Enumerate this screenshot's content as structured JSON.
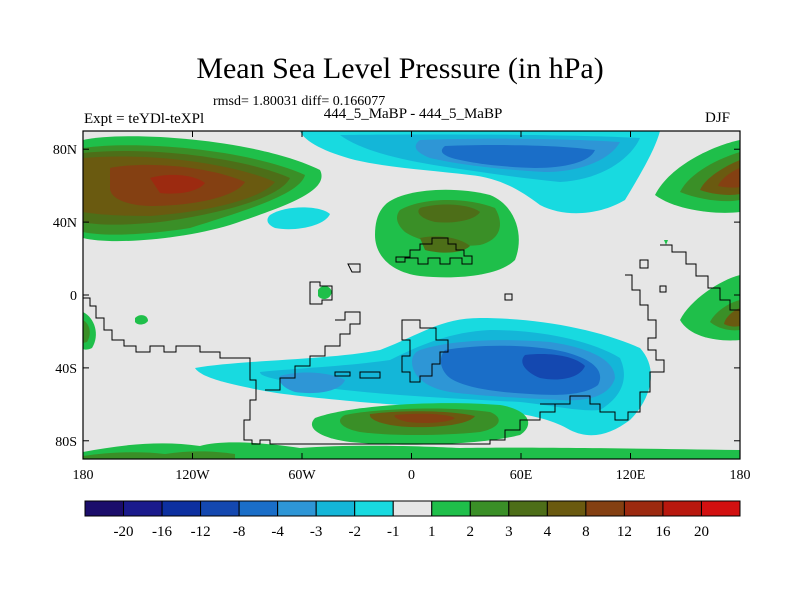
{
  "chart_data": {
    "type": "heatmap",
    "title": "Mean Sea Level Pressure (in hPa)",
    "stats_line": "rmsd= 1.80031 diff= 0.166077",
    "left_label": "Expt = teYDl-teXPl",
    "center_label": "444_5_MaBP - 444_5_MaBP",
    "right_label": "DJF",
    "x_axis": {
      "range": [
        -180,
        180
      ],
      "ticks": [
        -180,
        -120,
        -60,
        0,
        60,
        120,
        180
      ],
      "tick_labels": [
        "180",
        "120W",
        "60W",
        "0",
        "60E",
        "120E",
        "180"
      ]
    },
    "y_axis": {
      "range": [
        -90,
        90
      ],
      "ticks": [
        80,
        40,
        0,
        -40,
        -80
      ],
      "tick_labels": [
        "80N",
        "40N",
        "0",
        "40S",
        "80S"
      ]
    },
    "colorbar": {
      "levels": [
        "-20",
        "-16",
        "-12",
        "-8",
        "-4",
        "-3",
        "-2",
        "-1",
        "1",
        "2",
        "3",
        "4",
        "8",
        "12",
        "16",
        "20"
      ],
      "colors": [
        "#1b0d6b",
        "#1a1a8c",
        "#0d30a0",
        "#1448b0",
        "#1a6ec8",
        "#2e96d6",
        "#14b6d8",
        "#18dae0",
        "#e6e6e6",
        "#1fbf4a",
        "#3a8f27",
        "#4d6e18",
        "#6a5a10",
        "#844012",
        "#9c2a10",
        "#b8180e",
        "#d21010"
      ]
    },
    "anomaly_regions": [
      {
        "name": "north-pacific-high",
        "sign": "positive",
        "peak_level": "12"
      },
      {
        "name": "north-atlantic-high",
        "sign": "positive",
        "peak_level": "4"
      },
      {
        "name": "arctic-low",
        "sign": "negative",
        "peak_level": "-4"
      },
      {
        "name": "southern-ocean-low",
        "sign": "negative",
        "peak_level": "-4"
      },
      {
        "name": "antarctic-coastal-high",
        "sign": "positive",
        "peak_level": "4"
      },
      {
        "name": "tropical-west-pacific-high",
        "sign": "positive",
        "peak_level": "3"
      }
    ]
  }
}
